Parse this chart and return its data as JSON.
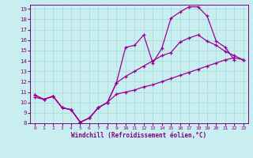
{
  "xlabel": "Windchill (Refroidissement éolien,°C)",
  "bg_color": "#c8eef0",
  "grid_color": "#a8d8d8",
  "line_color": "#990099",
  "xlim": [
    -0.5,
    23.5
  ],
  "ylim": [
    8,
    19.4
  ],
  "xticks": [
    0,
    1,
    2,
    3,
    4,
    5,
    6,
    7,
    8,
    9,
    10,
    11,
    12,
    13,
    14,
    15,
    16,
    17,
    18,
    19,
    20,
    21,
    22,
    23
  ],
  "yticks": [
    8,
    9,
    10,
    11,
    12,
    13,
    14,
    15,
    16,
    17,
    18,
    19
  ],
  "line_upper_x": [
    0,
    1,
    2,
    3,
    4,
    5,
    6,
    7,
    8,
    9,
    10,
    11,
    12,
    13,
    14,
    15,
    16,
    17,
    18,
    19,
    20,
    21,
    22
  ],
  "line_upper_y": [
    10.7,
    10.3,
    10.6,
    9.5,
    9.3,
    8.1,
    8.5,
    9.5,
    10.0,
    11.9,
    15.3,
    15.5,
    16.5,
    13.8,
    15.2,
    18.1,
    18.7,
    19.2,
    19.2,
    18.3,
    15.9,
    15.3,
    14.1
  ],
  "line_middle_x": [
    0,
    1,
    2,
    3,
    4,
    5,
    6,
    7,
    8,
    9,
    10,
    11,
    12,
    13,
    14,
    15,
    16,
    17,
    18,
    19,
    20,
    21,
    22,
    23
  ],
  "line_middle_y": [
    10.7,
    10.3,
    10.6,
    9.5,
    9.3,
    8.1,
    8.5,
    9.5,
    10.0,
    11.9,
    12.5,
    13.0,
    13.5,
    14.0,
    14.5,
    14.8,
    15.8,
    16.2,
    16.5,
    15.9,
    15.5,
    14.9,
    14.5,
    14.1
  ],
  "line_lower_x": [
    0,
    1,
    2,
    3,
    4,
    5,
    6,
    7,
    8,
    9,
    10,
    11,
    12,
    13,
    14,
    15,
    16,
    17,
    18,
    19,
    20,
    21,
    22,
    23
  ],
  "line_lower_y": [
    10.5,
    10.3,
    10.6,
    9.5,
    9.3,
    8.1,
    8.5,
    9.5,
    10.0,
    10.8,
    11.0,
    11.2,
    11.5,
    11.7,
    12.0,
    12.3,
    12.6,
    12.9,
    13.2,
    13.5,
    13.8,
    14.1,
    14.3,
    14.1
  ]
}
